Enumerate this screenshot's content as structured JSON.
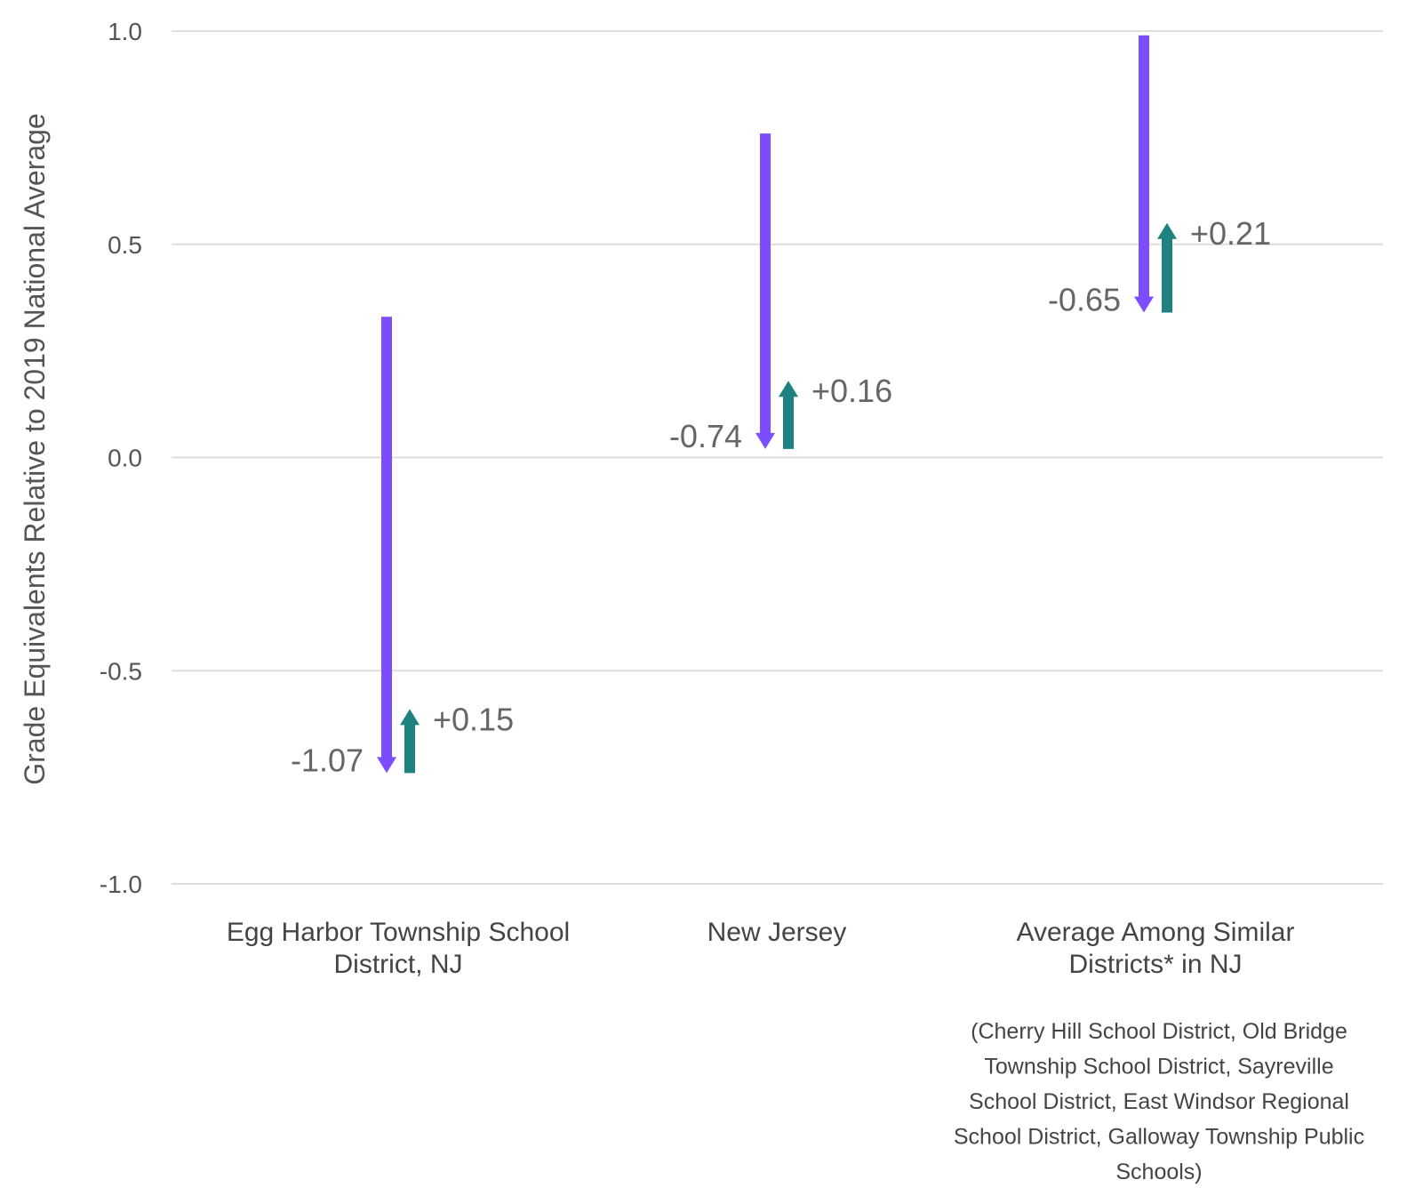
{
  "chart_data": {
    "type": "arrow",
    "title": "",
    "xlabel": "",
    "ylabel": "Grade Equivalents Relative to 2019 National Average",
    "ylim": [
      -1.0,
      1.0
    ],
    "yticks": [
      "1.0",
      "0.5",
      "0.0",
      "-0.5",
      "-1.0"
    ],
    "grid": true,
    "categories": [
      {
        "lines": [
          "Egg Harbor Township School",
          "District, NJ"
        ],
        "note_lines": []
      },
      {
        "lines": [
          "New Jersey"
        ],
        "note_lines": []
      },
      {
        "lines": [
          "Average Among Similar",
          "Districts* in NJ"
        ],
        "note_lines": [
          "(Cherry Hill School District, Old Bridge",
          "Township School District, Sayreville",
          "School District, East Windsor Regional",
          "School District, Galloway Township Public",
          "Schools)"
        ]
      }
    ],
    "series": [
      {
        "values": [
          -1.07,
          -0.74,
          -0.65
        ],
        "labels": [
          "-1.07",
          "-0.74",
          "-0.65"
        ],
        "start": [
          0.33,
          0.76,
          0.99
        ],
        "end": [
          -0.74,
          0.02,
          0.34
        ]
      },
      {
        "values": [
          0.15,
          0.16,
          0.21
        ],
        "labels": [
          "+0.15",
          "+0.16",
          "+0.21"
        ],
        "start": [
          -0.74,
          0.02,
          0.34
        ],
        "end": [
          -0.59,
          0.18,
          0.55
        ]
      }
    ],
    "colors": {
      "decline": "#7b4dff",
      "recovery": "#1e8281"
    }
  }
}
